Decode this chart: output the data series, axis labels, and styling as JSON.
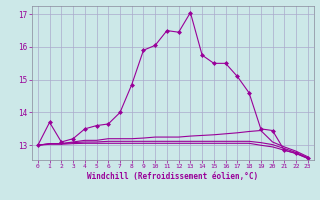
{
  "xlabel": "Windchill (Refroidissement éolien,°C)",
  "bg_color": "#cce8e8",
  "line_color": "#990099",
  "grid_color": "#aaaacc",
  "text_color": "#990099",
  "xlim": [
    -0.5,
    23.5
  ],
  "ylim": [
    12.55,
    17.25
  ],
  "yticks": [
    13,
    14,
    15,
    16,
    17
  ],
  "xticks": [
    0,
    1,
    2,
    3,
    4,
    5,
    6,
    7,
    8,
    9,
    10,
    11,
    12,
    13,
    14,
    15,
    16,
    17,
    18,
    19,
    20,
    21,
    22,
    23
  ],
  "series": [
    {
      "x": [
        0,
        1,
        2,
        3,
        4,
        5,
        6,
        7,
        8,
        9,
        10,
        11,
        12,
        13,
        14,
        15,
        16,
        17,
        18,
        19,
        20,
        21,
        22,
        23
      ],
      "y": [
        13.0,
        13.7,
        13.1,
        13.2,
        13.5,
        13.6,
        13.65,
        14.0,
        14.85,
        15.9,
        16.05,
        16.5,
        16.45,
        17.05,
        15.75,
        15.5,
        15.5,
        15.1,
        14.6,
        13.5,
        13.45,
        12.85,
        12.75,
        12.6
      ],
      "marker": "D",
      "markersize": 2.0,
      "linewidth": 0.8
    },
    {
      "x": [
        0,
        1,
        2,
        3,
        4,
        5,
        6,
        7,
        8,
        9,
        10,
        11,
        12,
        13,
        14,
        15,
        16,
        17,
        18,
        19,
        20,
        21,
        22,
        23
      ],
      "y": [
        13.0,
        13.05,
        13.05,
        13.1,
        13.15,
        13.15,
        13.2,
        13.2,
        13.2,
        13.22,
        13.25,
        13.25,
        13.25,
        13.28,
        13.3,
        13.32,
        13.35,
        13.38,
        13.42,
        13.45,
        13.1,
        12.95,
        12.82,
        12.65
      ],
      "marker": null,
      "markersize": 0,
      "linewidth": 0.8
    },
    {
      "x": [
        0,
        1,
        2,
        3,
        4,
        5,
        6,
        7,
        8,
        9,
        10,
        11,
        12,
        13,
        14,
        15,
        16,
        17,
        18,
        19,
        20,
        21,
        22,
        23
      ],
      "y": [
        13.0,
        13.05,
        13.05,
        13.08,
        13.1,
        13.1,
        13.12,
        13.12,
        13.12,
        13.12,
        13.12,
        13.12,
        13.12,
        13.12,
        13.12,
        13.12,
        13.12,
        13.12,
        13.12,
        13.08,
        13.02,
        12.9,
        12.78,
        12.62
      ],
      "marker": null,
      "markersize": 0,
      "linewidth": 0.8
    },
    {
      "x": [
        0,
        1,
        2,
        3,
        4,
        5,
        6,
        7,
        8,
        9,
        10,
        11,
        12,
        13,
        14,
        15,
        16,
        17,
        18,
        19,
        20,
        21,
        22,
        23
      ],
      "y": [
        13.0,
        13.03,
        13.03,
        13.05,
        13.06,
        13.06,
        13.06,
        13.06,
        13.06,
        13.06,
        13.06,
        13.06,
        13.06,
        13.06,
        13.06,
        13.06,
        13.06,
        13.06,
        13.06,
        13.0,
        12.95,
        12.85,
        12.75,
        12.6
      ],
      "marker": null,
      "markersize": 0,
      "linewidth": 0.8
    }
  ]
}
